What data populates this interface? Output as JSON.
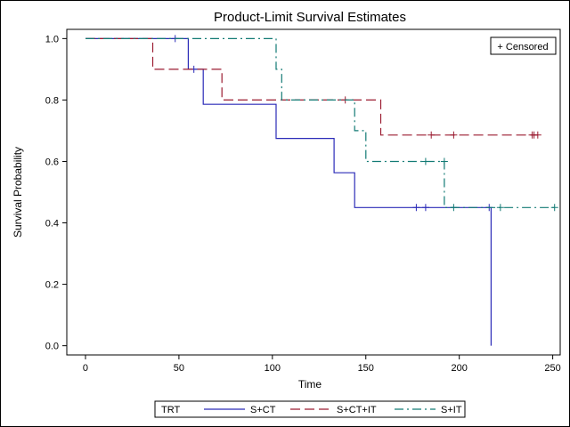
{
  "chart_data": {
    "type": "line",
    "title": "Product-Limit Survival Estimates",
    "xlabel": "Time",
    "ylabel": "Survival Probability",
    "xlim": [
      -10,
      254
    ],
    "ylim": [
      -0.03,
      1.03
    ],
    "xticks": [
      "0",
      "50",
      "100",
      "150",
      "200",
      "250"
    ],
    "yticks": [
      "0.0",
      "0.2",
      "0.4",
      "0.6",
      "0.8",
      "1.0"
    ],
    "grid": false,
    "inset_legend": {
      "position": "top-right",
      "label": "+ Censored"
    },
    "legend": {
      "position": "bottom",
      "title": "TRT",
      "entries": [
        "S+CT",
        "S+CT+IT",
        "S+IT"
      ]
    },
    "series": [
      {
        "name": "S+CT",
        "color": "#2b2bb8",
        "dash": "solid",
        "steps": [
          [
            0,
            1.0
          ],
          [
            55,
            0.9
          ],
          [
            63,
            0.786
          ],
          [
            102,
            0.675
          ],
          [
            133,
            0.563
          ],
          [
            144,
            0.45
          ],
          [
            217,
            0.0
          ]
        ],
        "end_x": 217,
        "censored": [
          [
            48,
            1.0
          ],
          [
            58,
            0.9
          ],
          [
            177,
            0.45
          ],
          [
            182,
            0.45
          ],
          [
            216,
            0.45
          ]
        ]
      },
      {
        "name": "S+CT+IT",
        "color": "#9b1c31",
        "dash": "long",
        "steps": [
          [
            0,
            1.0
          ],
          [
            36,
            0.9
          ],
          [
            73,
            0.8
          ],
          [
            158,
            0.686
          ]
        ],
        "end_x": 242,
        "censored": [
          [
            139,
            0.8
          ],
          [
            185,
            0.686
          ],
          [
            197,
            0.686
          ],
          [
            239,
            0.686
          ],
          [
            240,
            0.686
          ],
          [
            242,
            0.686
          ]
        ]
      },
      {
        "name": "S+IT",
        "color": "#127a74",
        "dash": "dashdot",
        "steps": [
          [
            0,
            1.0
          ],
          [
            102,
            0.9
          ],
          [
            105,
            0.8
          ],
          [
            144,
            0.7
          ],
          [
            150,
            0.6
          ],
          [
            192,
            0.45
          ]
        ],
        "end_x": 251,
        "censored": [
          [
            182,
            0.6
          ],
          [
            192,
            0.6
          ],
          [
            197,
            0.45
          ],
          [
            222,
            0.45
          ],
          [
            251,
            0.45
          ]
        ]
      }
    ]
  }
}
